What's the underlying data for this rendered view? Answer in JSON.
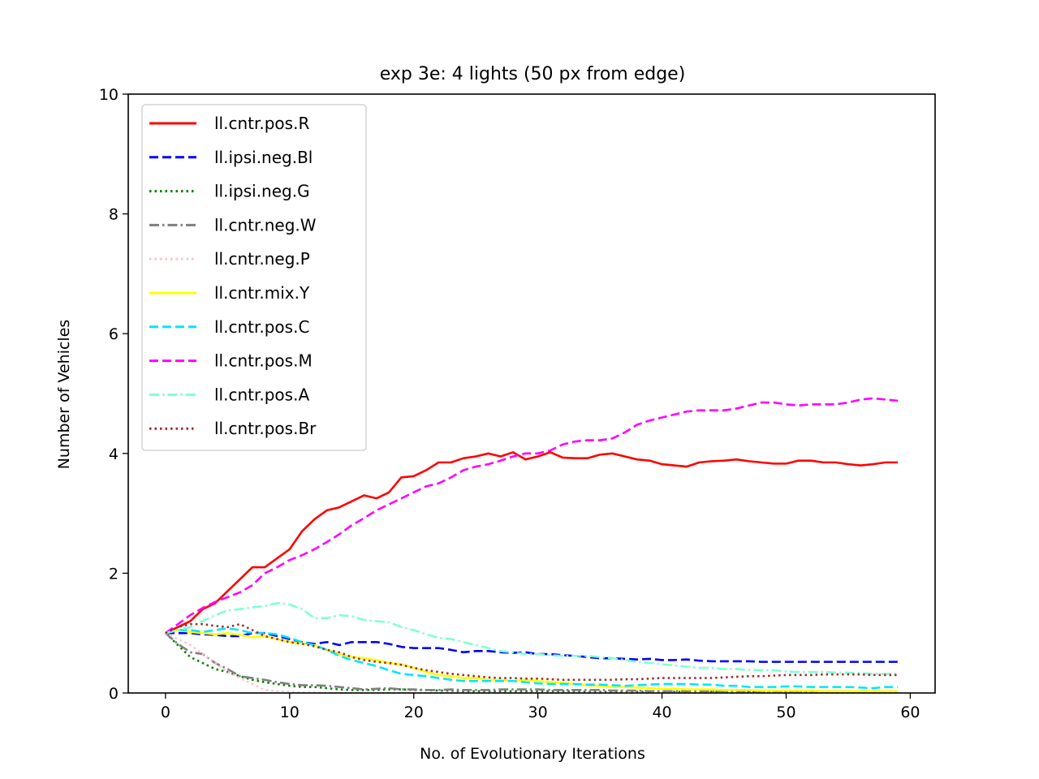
{
  "chart_data": {
    "type": "line",
    "title": "exp 3e: 4 lights (50 px from edge)",
    "xlabel": "No. of Evolutionary Iterations",
    "ylabel": "Number of Vehicles",
    "xlim": [
      -3,
      62
    ],
    "ylim": [
      0,
      10
    ],
    "xticks": [
      0,
      10,
      20,
      30,
      40,
      50,
      60
    ],
    "yticks": [
      0,
      2,
      4,
      6,
      8,
      10
    ],
    "xtick_labels": [
      "0",
      "10",
      "20",
      "30",
      "40",
      "50",
      "60"
    ],
    "ytick_labels": [
      "0",
      "2",
      "4",
      "6",
      "8",
      "10"
    ],
    "grid": false,
    "legend_position": "upper-left",
    "x": [
      0,
      1,
      2,
      3,
      4,
      5,
      6,
      7,
      8,
      9,
      10,
      11,
      12,
      13,
      14,
      15,
      16,
      17,
      18,
      19,
      20,
      21,
      22,
      23,
      24,
      25,
      26,
      27,
      28,
      29,
      30,
      31,
      32,
      33,
      34,
      35,
      36,
      37,
      38,
      39,
      40,
      41,
      42,
      43,
      44,
      45,
      46,
      47,
      48,
      49,
      50,
      51,
      52,
      53,
      54,
      55,
      56,
      57,
      58,
      59
    ],
    "series": [
      {
        "name": "ll.cntr.pos.R",
        "color": "#ff0000",
        "dash": "solid",
        "values": [
          1.0,
          1.1,
          1.2,
          1.4,
          1.5,
          1.7,
          1.9,
          2.1,
          2.1,
          2.25,
          2.4,
          2.7,
          2.9,
          3.05,
          3.1,
          3.2,
          3.3,
          3.25,
          3.35,
          3.6,
          3.62,
          3.72,
          3.85,
          3.85,
          3.92,
          3.95,
          4.0,
          3.95,
          4.02,
          3.9,
          3.95,
          4.02,
          3.93,
          3.92,
          3.92,
          3.98,
          4.0,
          3.95,
          3.9,
          3.88,
          3.82,
          3.8,
          3.78,
          3.85,
          3.87,
          3.88,
          3.9,
          3.87,
          3.85,
          3.83,
          3.83,
          3.88,
          3.88,
          3.85,
          3.85,
          3.82,
          3.8,
          3.82,
          3.85,
          3.85
        ]
      },
      {
        "name": "ll.ipsi.neg.Bl",
        "color": "#0000ff",
        "dash": "dashed",
        "values": [
          1.0,
          1.0,
          1.0,
          0.98,
          0.97,
          0.95,
          0.95,
          1.0,
          1.0,
          0.95,
          0.9,
          0.85,
          0.82,
          0.85,
          0.8,
          0.85,
          0.85,
          0.85,
          0.82,
          0.77,
          0.75,
          0.75,
          0.75,
          0.72,
          0.68,
          0.7,
          0.7,
          0.68,
          0.67,
          0.68,
          0.65,
          0.65,
          0.63,
          0.62,
          0.6,
          0.58,
          0.58,
          0.57,
          0.56,
          0.57,
          0.55,
          0.55,
          0.56,
          0.54,
          0.53,
          0.53,
          0.53,
          0.53,
          0.52,
          0.52,
          0.52,
          0.52,
          0.52,
          0.52,
          0.52,
          0.52,
          0.52,
          0.52,
          0.52,
          0.52
        ]
      },
      {
        "name": "ll.ipsi.neg.G",
        "color": "#008000",
        "dash": "dotted",
        "values": [
          1.0,
          0.8,
          0.6,
          0.5,
          0.4,
          0.35,
          0.28,
          0.22,
          0.18,
          0.15,
          0.12,
          0.1,
          0.1,
          0.08,
          0.06,
          0.05,
          0.05,
          0.05,
          0.06,
          0.06,
          0.05,
          0.05,
          0.04,
          0.04,
          0.03,
          0.03,
          0.03,
          0.03,
          0.03,
          0.03,
          0.03,
          0.03,
          0.03,
          0.03,
          0.02,
          0.02,
          0.02,
          0.02,
          0.02,
          0.02,
          0.02,
          0.02,
          0.02,
          0.02,
          0.02,
          0.02,
          0.02,
          0.02,
          0.02,
          0.02,
          0.02,
          0.02,
          0.02,
          0.02,
          0.02,
          0.02,
          0.02,
          0.02,
          0.02,
          0.02
        ]
      },
      {
        "name": "ll.cntr.neg.W",
        "color": "#808080",
        "dash": "dashdot",
        "values": [
          1.0,
          0.82,
          0.68,
          0.65,
          0.5,
          0.4,
          0.28,
          0.25,
          0.22,
          0.18,
          0.15,
          0.13,
          0.13,
          0.12,
          0.1,
          0.08,
          0.06,
          0.07,
          0.08,
          0.06,
          0.06,
          0.05,
          0.05,
          0.06,
          0.05,
          0.05,
          0.05,
          0.06,
          0.06,
          0.06,
          0.06,
          0.05,
          0.05,
          0.05,
          0.05,
          0.05,
          0.04,
          0.04,
          0.04,
          0.03,
          0.03,
          0.03,
          0.03,
          0.03,
          0.03,
          0.03,
          0.03,
          0.03,
          0.03,
          0.03,
          0.03,
          0.03,
          0.03,
          0.03,
          0.03,
          0.03,
          0.03,
          0.03,
          0.03,
          0.03
        ]
      },
      {
        "name": "ll.cntr.neg.P",
        "color": "#ffc0cb",
        "dash": "dotted",
        "values": [
          1.0,
          0.9,
          0.8,
          0.65,
          0.5,
          0.35,
          0.25,
          0.15,
          0.05,
          0.03,
          0.02,
          0.01,
          0.01,
          0.0,
          0.0,
          0.0,
          0.0,
          0.0,
          0.0,
          0.0,
          0.0,
          0.0,
          0.0,
          0.0,
          0.0,
          0.0,
          0.0,
          0.0,
          0.0,
          0.0,
          0.0,
          0.0,
          0.0,
          0.0,
          0.0,
          0.0,
          0.0,
          0.0,
          0.0,
          0.0,
          0.0,
          0.0,
          0.0,
          0.0,
          0.0,
          0.0,
          0.0,
          0.0,
          0.0,
          0.0,
          0.0,
          0.0,
          0.0,
          0.0,
          0.0,
          0.0,
          0.0,
          0.0,
          0.0,
          0.0
        ]
      },
      {
        "name": "ll.cntr.mix.Y",
        "color": "#ffff00",
        "dash": "solid",
        "values": [
          1.0,
          1.05,
          1.02,
          1.0,
          0.98,
          1.0,
          0.97,
          0.93,
          0.95,
          0.9,
          0.85,
          0.83,
          0.8,
          0.72,
          0.65,
          0.6,
          0.58,
          0.55,
          0.5,
          0.48,
          0.42,
          0.35,
          0.3,
          0.28,
          0.25,
          0.25,
          0.22,
          0.22,
          0.2,
          0.22,
          0.2,
          0.18,
          0.17,
          0.15,
          0.13,
          0.12,
          0.1,
          0.1,
          0.09,
          0.08,
          0.07,
          0.07,
          0.06,
          0.06,
          0.06,
          0.05,
          0.05,
          0.05,
          0.04,
          0.04,
          0.04,
          0.04,
          0.04,
          0.03,
          0.03,
          0.03,
          0.03,
          0.03,
          0.03,
          0.03
        ]
      },
      {
        "name": "ll.cntr.pos.C",
        "color": "#00e5ff",
        "dash": "dashed",
        "values": [
          1.0,
          1.05,
          1.05,
          1.02,
          1.05,
          1.08,
          1.05,
          1.0,
          1.0,
          0.98,
          0.92,
          0.85,
          0.8,
          0.72,
          0.62,
          0.55,
          0.5,
          0.45,
          0.38,
          0.32,
          0.3,
          0.28,
          0.25,
          0.22,
          0.2,
          0.2,
          0.2,
          0.2,
          0.2,
          0.18,
          0.16,
          0.15,
          0.15,
          0.15,
          0.14,
          0.14,
          0.13,
          0.12,
          0.13,
          0.14,
          0.15,
          0.15,
          0.15,
          0.14,
          0.14,
          0.12,
          0.12,
          0.1,
          0.1,
          0.1,
          0.11,
          0.11,
          0.1,
          0.1,
          0.1,
          0.1,
          0.09,
          0.08,
          0.1,
          0.1
        ]
      },
      {
        "name": "ll.cntr.pos.M",
        "color": "#ff00ff",
        "dash": "dashed",
        "values": [
          1.0,
          1.15,
          1.3,
          1.42,
          1.52,
          1.6,
          1.68,
          1.8,
          2.0,
          2.1,
          2.22,
          2.3,
          2.4,
          2.52,
          2.65,
          2.8,
          2.92,
          3.05,
          3.15,
          3.25,
          3.35,
          3.45,
          3.5,
          3.6,
          3.72,
          3.78,
          3.82,
          3.88,
          3.95,
          4.0,
          4.0,
          4.05,
          4.15,
          4.2,
          4.22,
          4.22,
          4.25,
          4.35,
          4.48,
          4.55,
          4.6,
          4.65,
          4.7,
          4.72,
          4.72,
          4.72,
          4.75,
          4.8,
          4.85,
          4.85,
          4.82,
          4.8,
          4.82,
          4.82,
          4.82,
          4.85,
          4.9,
          4.92,
          4.9,
          4.88
        ]
      },
      {
        "name": "ll.cntr.pos.A",
        "color": "#7fffd4",
        "dash": "dashdot",
        "values": [
          1.0,
          1.05,
          1.1,
          1.2,
          1.3,
          1.38,
          1.4,
          1.43,
          1.45,
          1.5,
          1.48,
          1.4,
          1.25,
          1.25,
          1.3,
          1.28,
          1.22,
          1.2,
          1.18,
          1.1,
          1.05,
          0.98,
          0.92,
          0.9,
          0.85,
          0.8,
          0.75,
          0.7,
          0.68,
          0.65,
          0.65,
          0.63,
          0.62,
          0.62,
          0.62,
          0.6,
          0.58,
          0.55,
          0.52,
          0.5,
          0.48,
          0.46,
          0.44,
          0.42,
          0.42,
          0.4,
          0.4,
          0.38,
          0.38,
          0.38,
          0.36,
          0.35,
          0.35,
          0.35,
          0.34,
          0.34,
          0.33,
          0.32,
          0.32,
          0.32
        ]
      },
      {
        "name": "ll.cntr.pos.Br",
        "color": "#a52a2a",
        "dash": "dotted",
        "values": [
          1.0,
          1.1,
          1.15,
          1.15,
          1.12,
          1.1,
          1.15,
          1.05,
          0.95,
          0.9,
          0.85,
          0.82,
          0.78,
          0.72,
          0.68,
          0.6,
          0.55,
          0.52,
          0.5,
          0.47,
          0.42,
          0.38,
          0.35,
          0.32,
          0.3,
          0.28,
          0.26,
          0.25,
          0.25,
          0.24,
          0.24,
          0.23,
          0.22,
          0.22,
          0.22,
          0.22,
          0.22,
          0.23,
          0.23,
          0.24,
          0.25,
          0.25,
          0.25,
          0.25,
          0.25,
          0.26,
          0.27,
          0.28,
          0.28,
          0.29,
          0.3,
          0.3,
          0.3,
          0.31,
          0.31,
          0.31,
          0.31,
          0.3,
          0.3,
          0.3
        ]
      }
    ]
  }
}
